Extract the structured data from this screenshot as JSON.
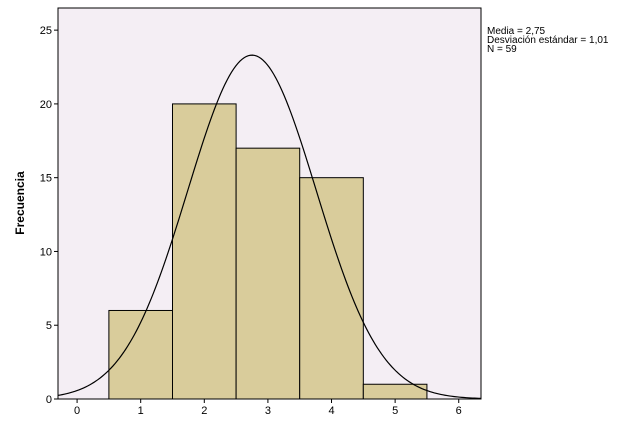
{
  "chart_data": {
    "type": "bar",
    "subtype": "histogram-with-normal-curve",
    "title": "",
    "xlabel": "",
    "ylabel": "Frecuencia",
    "x_ticks": [
      "0",
      "1",
      "2",
      "3",
      "4",
      "5",
      "6"
    ],
    "y_ticks": [
      "0",
      "5",
      "10",
      "15",
      "20",
      "25"
    ],
    "xlim": [
      -0.3,
      6.35
    ],
    "ylim": [
      0,
      26.5
    ],
    "grid": false,
    "bins": [
      {
        "start": 0.5,
        "end": 1.5,
        "value": 6
      },
      {
        "start": 1.5,
        "end": 2.5,
        "value": 20
      },
      {
        "start": 2.5,
        "end": 3.5,
        "value": 17
      },
      {
        "start": 3.5,
        "end": 4.5,
        "value": 15
      },
      {
        "start": 4.5,
        "end": 5.5,
        "value": 1
      }
    ],
    "normal_curve": {
      "mean": 2.75,
      "sd": 1.01,
      "n": 59,
      "bin_width": 1
    },
    "colors": {
      "bar_fill": "#d9cc9b",
      "plot_background": "#f4eef4",
      "line": "#000000"
    },
    "stats_text": [
      "Media = 2,75",
      "Desviación estándar = 1,01",
      "N = 59"
    ]
  }
}
